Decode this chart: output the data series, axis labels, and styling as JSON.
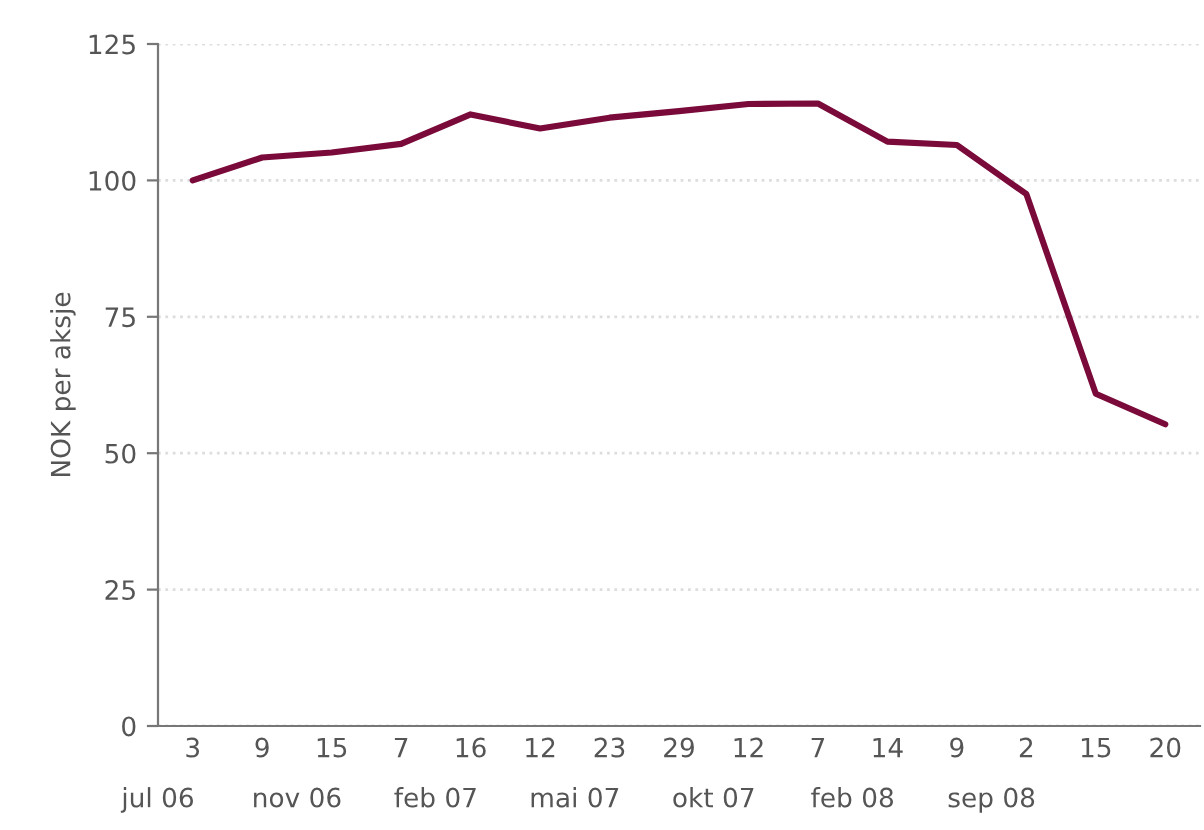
{
  "chart_data": {
    "type": "line",
    "ylabel": "NOK per aksje",
    "categories": [
      "3",
      "9",
      "15",
      "7",
      "16",
      "12",
      "23",
      "29",
      "12",
      "7",
      "14",
      "9",
      "2",
      "15",
      "20"
    ],
    "series": [
      {
        "color": "#7a0a3a",
        "values": [
          100,
          104.2,
          105.1,
          106.7,
          112.1,
          109.5,
          111.5,
          112.7,
          114.0,
          114.1,
          107.1,
          106.5,
          97.5,
          60.9,
          55.3
        ]
      }
    ],
    "ylim": [
      0,
      125
    ],
    "yticks": [
      0,
      25,
      50,
      75,
      100,
      125
    ],
    "grid": "y",
    "legend": false,
    "marker": "none",
    "line_style": "solid",
    "annotations": [
      "jul 06",
      "nov 06",
      "feb 07",
      "mai 07",
      "okt 07",
      "feb 08",
      "sep 08"
    ]
  }
}
